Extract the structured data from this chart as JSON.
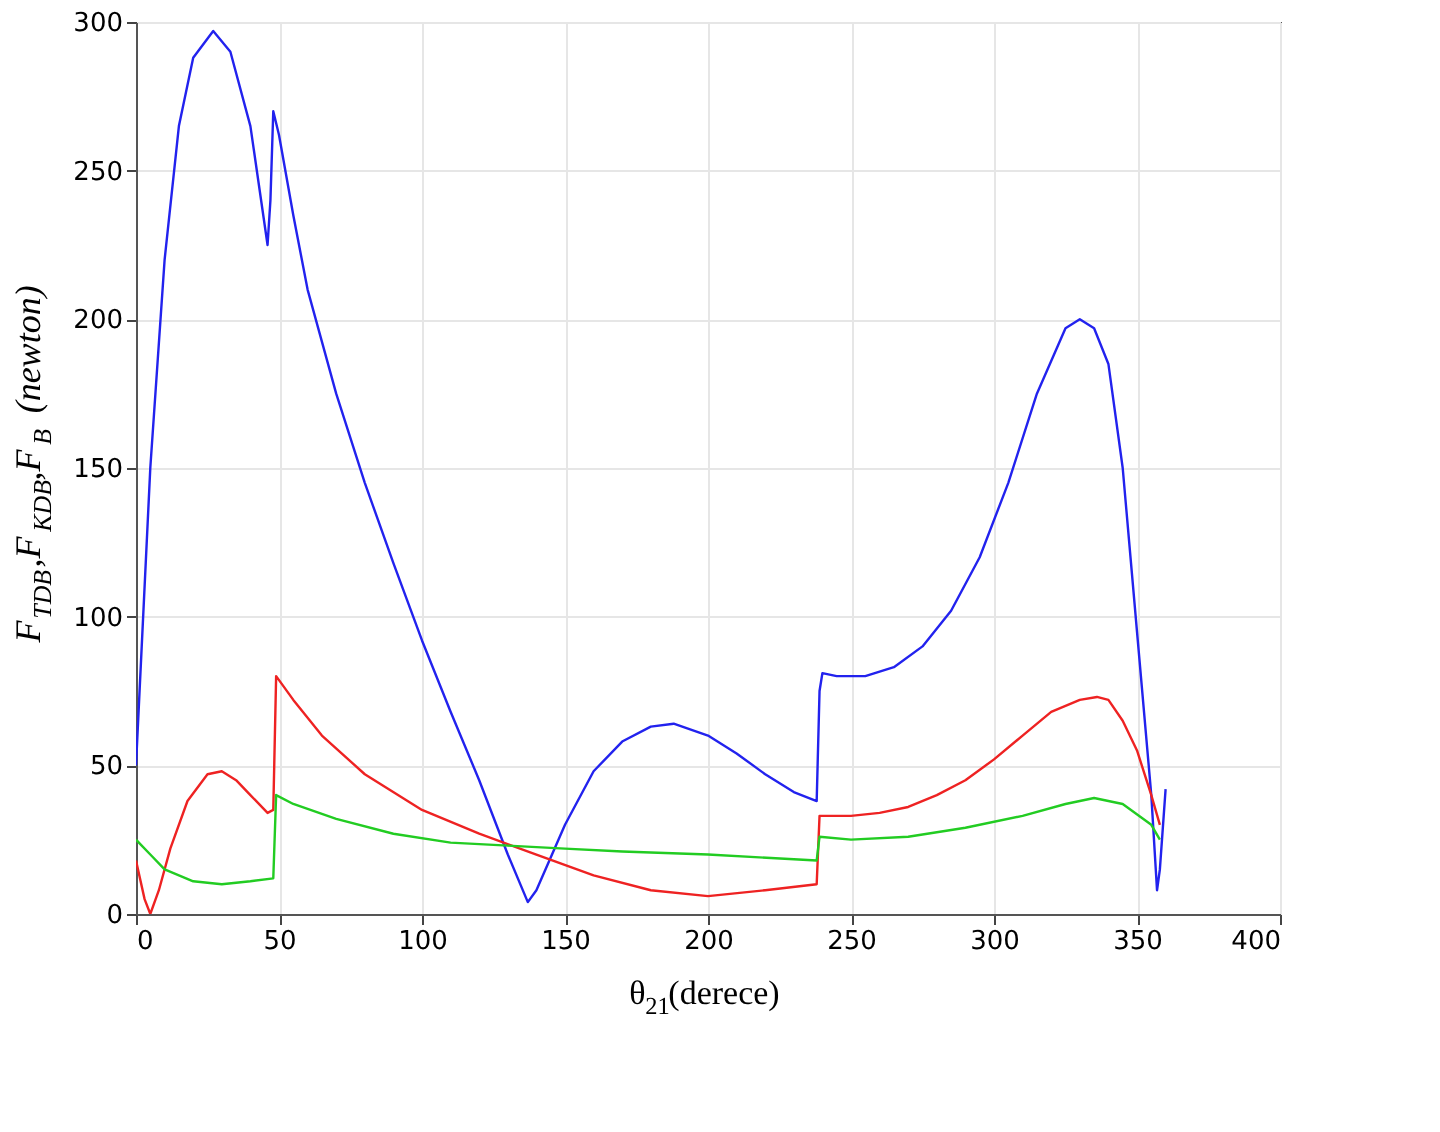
{
  "chart_data": {
    "type": "line",
    "xlabel": "θ$_{21}$(derece)",
    "ylabel": "F$_{TDB}$,F$_{KDB}$,F$_{B}$ (newton)",
    "xlim": [
      0,
      400
    ],
    "ylim": [
      0,
      300
    ],
    "xticks": [
      0,
      50,
      100,
      150,
      200,
      250,
      300,
      350,
      400
    ],
    "yticks": [
      0,
      50,
      100,
      150,
      200,
      250,
      300
    ],
    "grid": true,
    "series": [
      {
        "color": "#2222ee",
        "x": [
          0,
          2,
          5,
          10,
          15,
          20,
          27,
          33,
          40,
          46,
          47,
          48,
          50,
          55,
          60,
          70,
          80,
          90,
          100,
          110,
          120,
          130,
          137,
          140,
          150,
          160,
          170,
          180,
          188,
          200,
          210,
          220,
          230,
          238,
          239,
          240,
          245,
          255,
          265,
          275,
          285,
          295,
          305,
          315,
          325,
          330,
          335,
          340,
          345,
          350,
          355,
          357,
          358,
          360
        ],
        "values": [
          50,
          90,
          150,
          220,
          265,
          288,
          297,
          290,
          265,
          225,
          240,
          270,
          262,
          235,
          210,
          175,
          145,
          118,
          92,
          68,
          45,
          20,
          4,
          8,
          30,
          48,
          58,
          63,
          64,
          60,
          54,
          47,
          41,
          38,
          75,
          81,
          80,
          80,
          83,
          90,
          102,
          120,
          145,
          175,
          197,
          200,
          197,
          185,
          150,
          95,
          40,
          8,
          15,
          42
        ]
      },
      {
        "color": "#ee2222",
        "x": [
          0,
          3,
          5,
          8,
          12,
          18,
          25,
          30,
          35,
          40,
          46,
          48,
          49,
          55,
          65,
          80,
          100,
          120,
          140,
          160,
          180,
          200,
          220,
          238,
          239,
          250,
          260,
          270,
          280,
          290,
          300,
          310,
          320,
          330,
          336,
          340,
          345,
          350,
          355,
          358
        ],
        "values": [
          18,
          5,
          0,
          8,
          22,
          38,
          47,
          48,
          45,
          40,
          34,
          35,
          80,
          72,
          60,
          47,
          35,
          27,
          20,
          13,
          8,
          6,
          8,
          10,
          33,
          33,
          34,
          36,
          40,
          45,
          52,
          60,
          68,
          72,
          73,
          72,
          65,
          55,
          40,
          30
        ]
      },
      {
        "color": "#22cc22",
        "x": [
          0,
          5,
          10,
          20,
          30,
          40,
          48,
          49,
          55,
          70,
          90,
          110,
          130,
          150,
          170,
          200,
          238,
          239,
          250,
          270,
          290,
          310,
          325,
          335,
          345,
          355,
          358
        ],
        "values": [
          25,
          20,
          15,
          11,
          10,
          11,
          12,
          40,
          37,
          32,
          27,
          24,
          23,
          22,
          21,
          20,
          18,
          26,
          25,
          26,
          29,
          33,
          37,
          39,
          37,
          30,
          25
        ]
      }
    ]
  }
}
